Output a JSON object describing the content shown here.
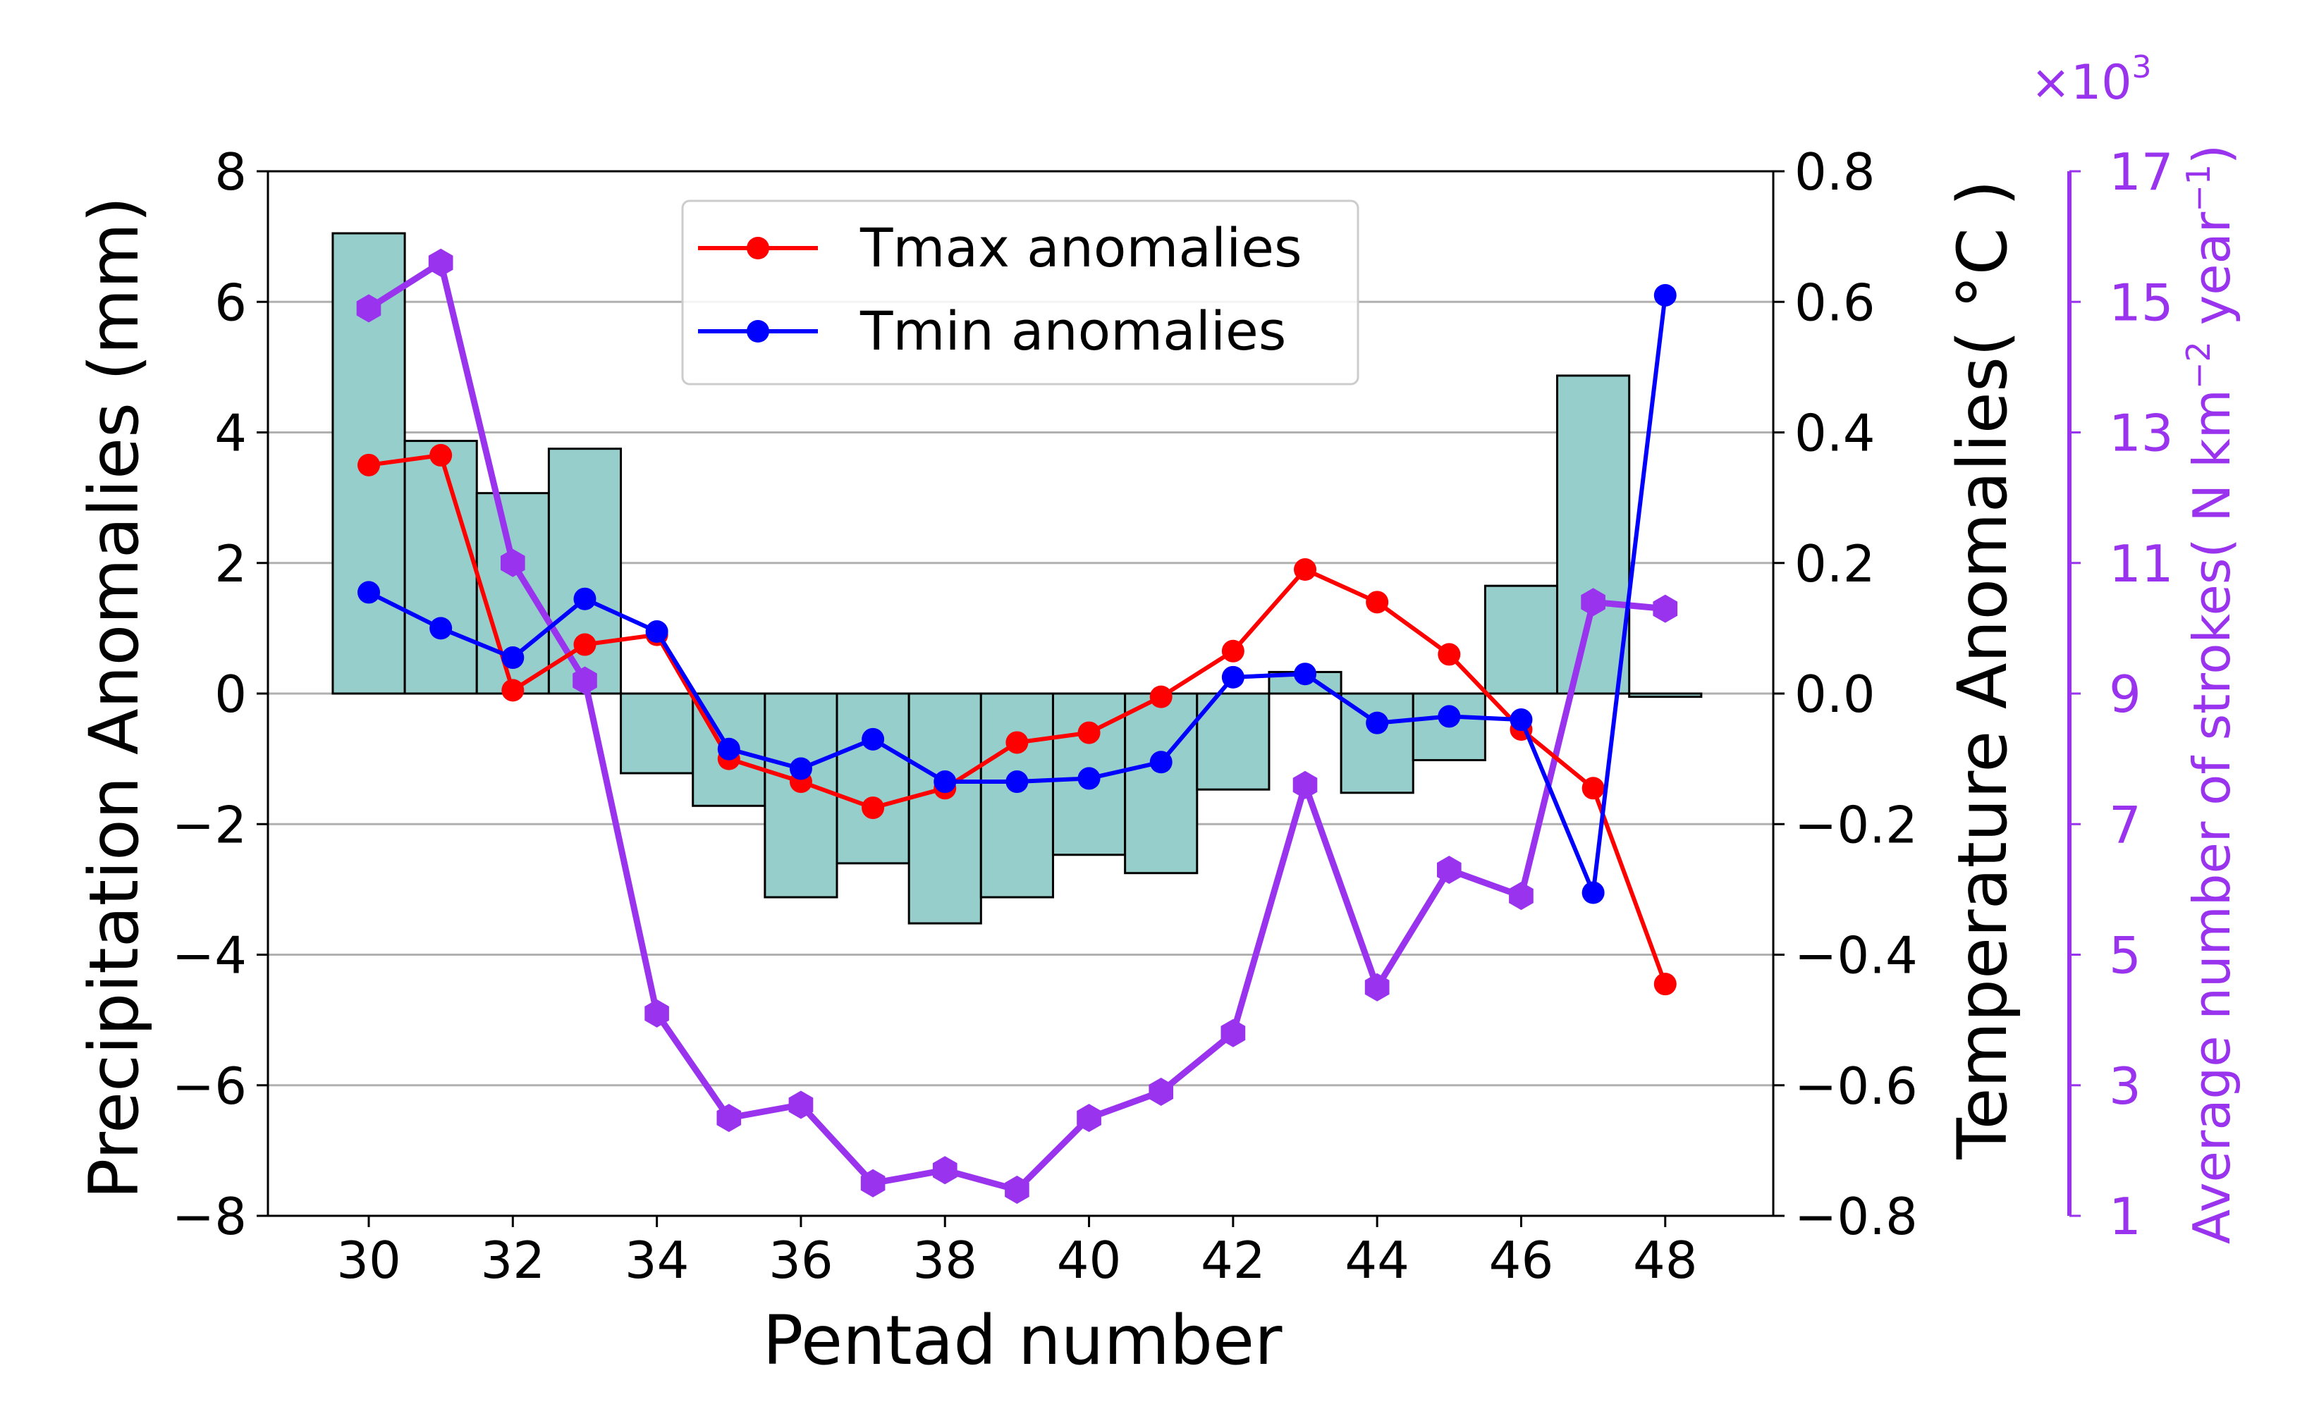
{
  "chart_data": {
    "type": "bar+line",
    "xlabel": "Pentad number",
    "x": [
      30,
      31,
      32,
      33,
      34,
      35,
      36,
      37,
      38,
      39,
      40,
      41,
      42,
      43,
      44,
      45,
      46,
      47,
      48
    ],
    "xticks": [
      30,
      32,
      34,
      36,
      38,
      40,
      42,
      44,
      46,
      48
    ],
    "xlim": [
      28.6,
      49.5
    ],
    "axes": {
      "left": {
        "label": "Precipitation Anomalies (mm)",
        "lim": [
          -8,
          8
        ],
        "ticks": [
          -8,
          -6,
          -4,
          -2,
          0,
          2,
          4,
          6,
          8
        ]
      },
      "right": {
        "label": "Temperature Anomalies( °C )",
        "lim": [
          -0.8,
          0.8
        ],
        "ticks": [
          -0.8,
          -0.6,
          -0.4,
          -0.2,
          0.0,
          0.2,
          0.4,
          0.6,
          0.8
        ]
      },
      "far_right": {
        "label": "Average number of strokes",
        "unit_text": "( N km",
        "unit_sup1": "−2",
        "unit_mid": " year",
        "unit_sup2": "−1",
        "unit_end": ")",
        "lim": [
          1,
          17
        ],
        "ticks": [
          1,
          3,
          5,
          7,
          9,
          11,
          13,
          15,
          17
        ],
        "multiplier_base": "×10",
        "multiplier_exp": "3"
      }
    },
    "grid": true,
    "series": [
      {
        "name": "Precipitation anomalies",
        "kind": "bar",
        "axis": "left",
        "values": [
          7.05,
          3.87,
          3.07,
          3.75,
          -1.22,
          -1.72,
          -3.12,
          -2.6,
          -3.52,
          -3.12,
          -2.47,
          -2.75,
          -1.47,
          0.33,
          -1.52,
          -1.02,
          1.65,
          4.87,
          -0.05
        ]
      },
      {
        "name": "Tmax anomalies",
        "kind": "line",
        "axis": "right",
        "values": [
          0.35,
          0.365,
          0.005,
          0.075,
          0.09,
          -0.1,
          -0.135,
          -0.175,
          -0.145,
          -0.075,
          -0.06,
          -0.005,
          0.065,
          0.19,
          0.14,
          0.06,
          -0.055,
          -0.145,
          -0.445
        ]
      },
      {
        "name": "Tmin anomalies",
        "kind": "line",
        "axis": "right",
        "values": [
          0.155,
          0.1,
          0.055,
          0.145,
          0.095,
          -0.085,
          -0.115,
          -0.07,
          -0.135,
          -0.135,
          -0.13,
          -0.105,
          0.025,
          0.03,
          -0.045,
          -0.035,
          -0.04,
          -0.305,
          0.61
        ]
      },
      {
        "name": "Average number of strokes",
        "kind": "line",
        "axis": "far_right",
        "values": [
          14.9,
          15.6,
          11.0,
          9.2,
          4.1,
          2.5,
          2.7,
          1.5,
          1.7,
          1.4,
          2.5,
          2.9,
          3.8,
          7.6,
          4.5,
          6.3,
          5.9,
          10.4,
          10.3
        ]
      }
    ],
    "legend": {
      "placement": "upper-center",
      "entries": [
        "Tmax anomalies",
        "Tmin anomalies"
      ]
    },
    "colors": {
      "bar_fill": "#95cecb",
      "bar_edge": "#000000",
      "tmax": "#ff0000",
      "tmin": "#0000ff",
      "strokes": "#9933ee",
      "grid": "#b0b0b0",
      "axis": "#000000"
    }
  }
}
